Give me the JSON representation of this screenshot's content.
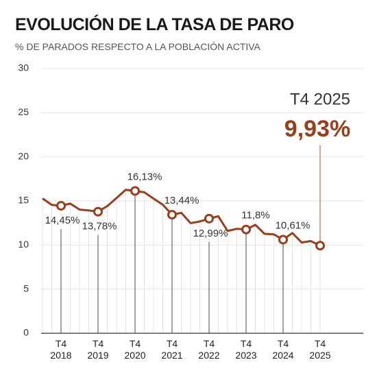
{
  "chart_data": {
    "type": "line",
    "title": "EVOLUCIÓN DE LA TASA DE PARO",
    "subtitle": "% DE PARADOS RESPECTO A LA POBLACIÓN ACTIVA",
    "annotation": "T4 2025",
    "categories": [
      null,
      null,
      "T4 2018",
      null,
      null,
      null,
      "T4 2019",
      null,
      null,
      null,
      "T4 2020",
      null,
      null,
      null,
      "T4 2021",
      null,
      null,
      null,
      "T4 2022",
      null,
      null,
      null,
      "T4 2023",
      null,
      null,
      null,
      "T4 2024",
      null,
      null,
      null,
      "T4 2025"
    ],
    "values": [
      15.28,
      14.55,
      14.45,
      14.7,
      14.02,
      13.92,
      13.78,
      14.41,
      15.33,
      16.26,
      16.13,
      15.98,
      15.26,
      14.57,
      13.44,
      13.65,
      12.48,
      12.67,
      12.99,
      13.26,
      11.6,
      11.84,
      11.76,
      12.29,
      11.27,
      11.21,
      10.61,
      11.36,
      10.29,
      10.45,
      9.93
    ],
    "value_labels": [
      null,
      null,
      "14,45%",
      null,
      null,
      null,
      "13,78%",
      null,
      null,
      null,
      "16,13%",
      null,
      null,
      null,
      "13,44%",
      null,
      null,
      null,
      "12,99%",
      null,
      null,
      null,
      "11,8%",
      null,
      null,
      null,
      "10,61%",
      null,
      null,
      null,
      "9,93%"
    ],
    "color": "#9c3d1a",
    "ylim": [
      0,
      30
    ],
    "yticks": [
      0,
      5,
      10,
      15,
      20,
      25,
      30
    ],
    "grid": true
  }
}
